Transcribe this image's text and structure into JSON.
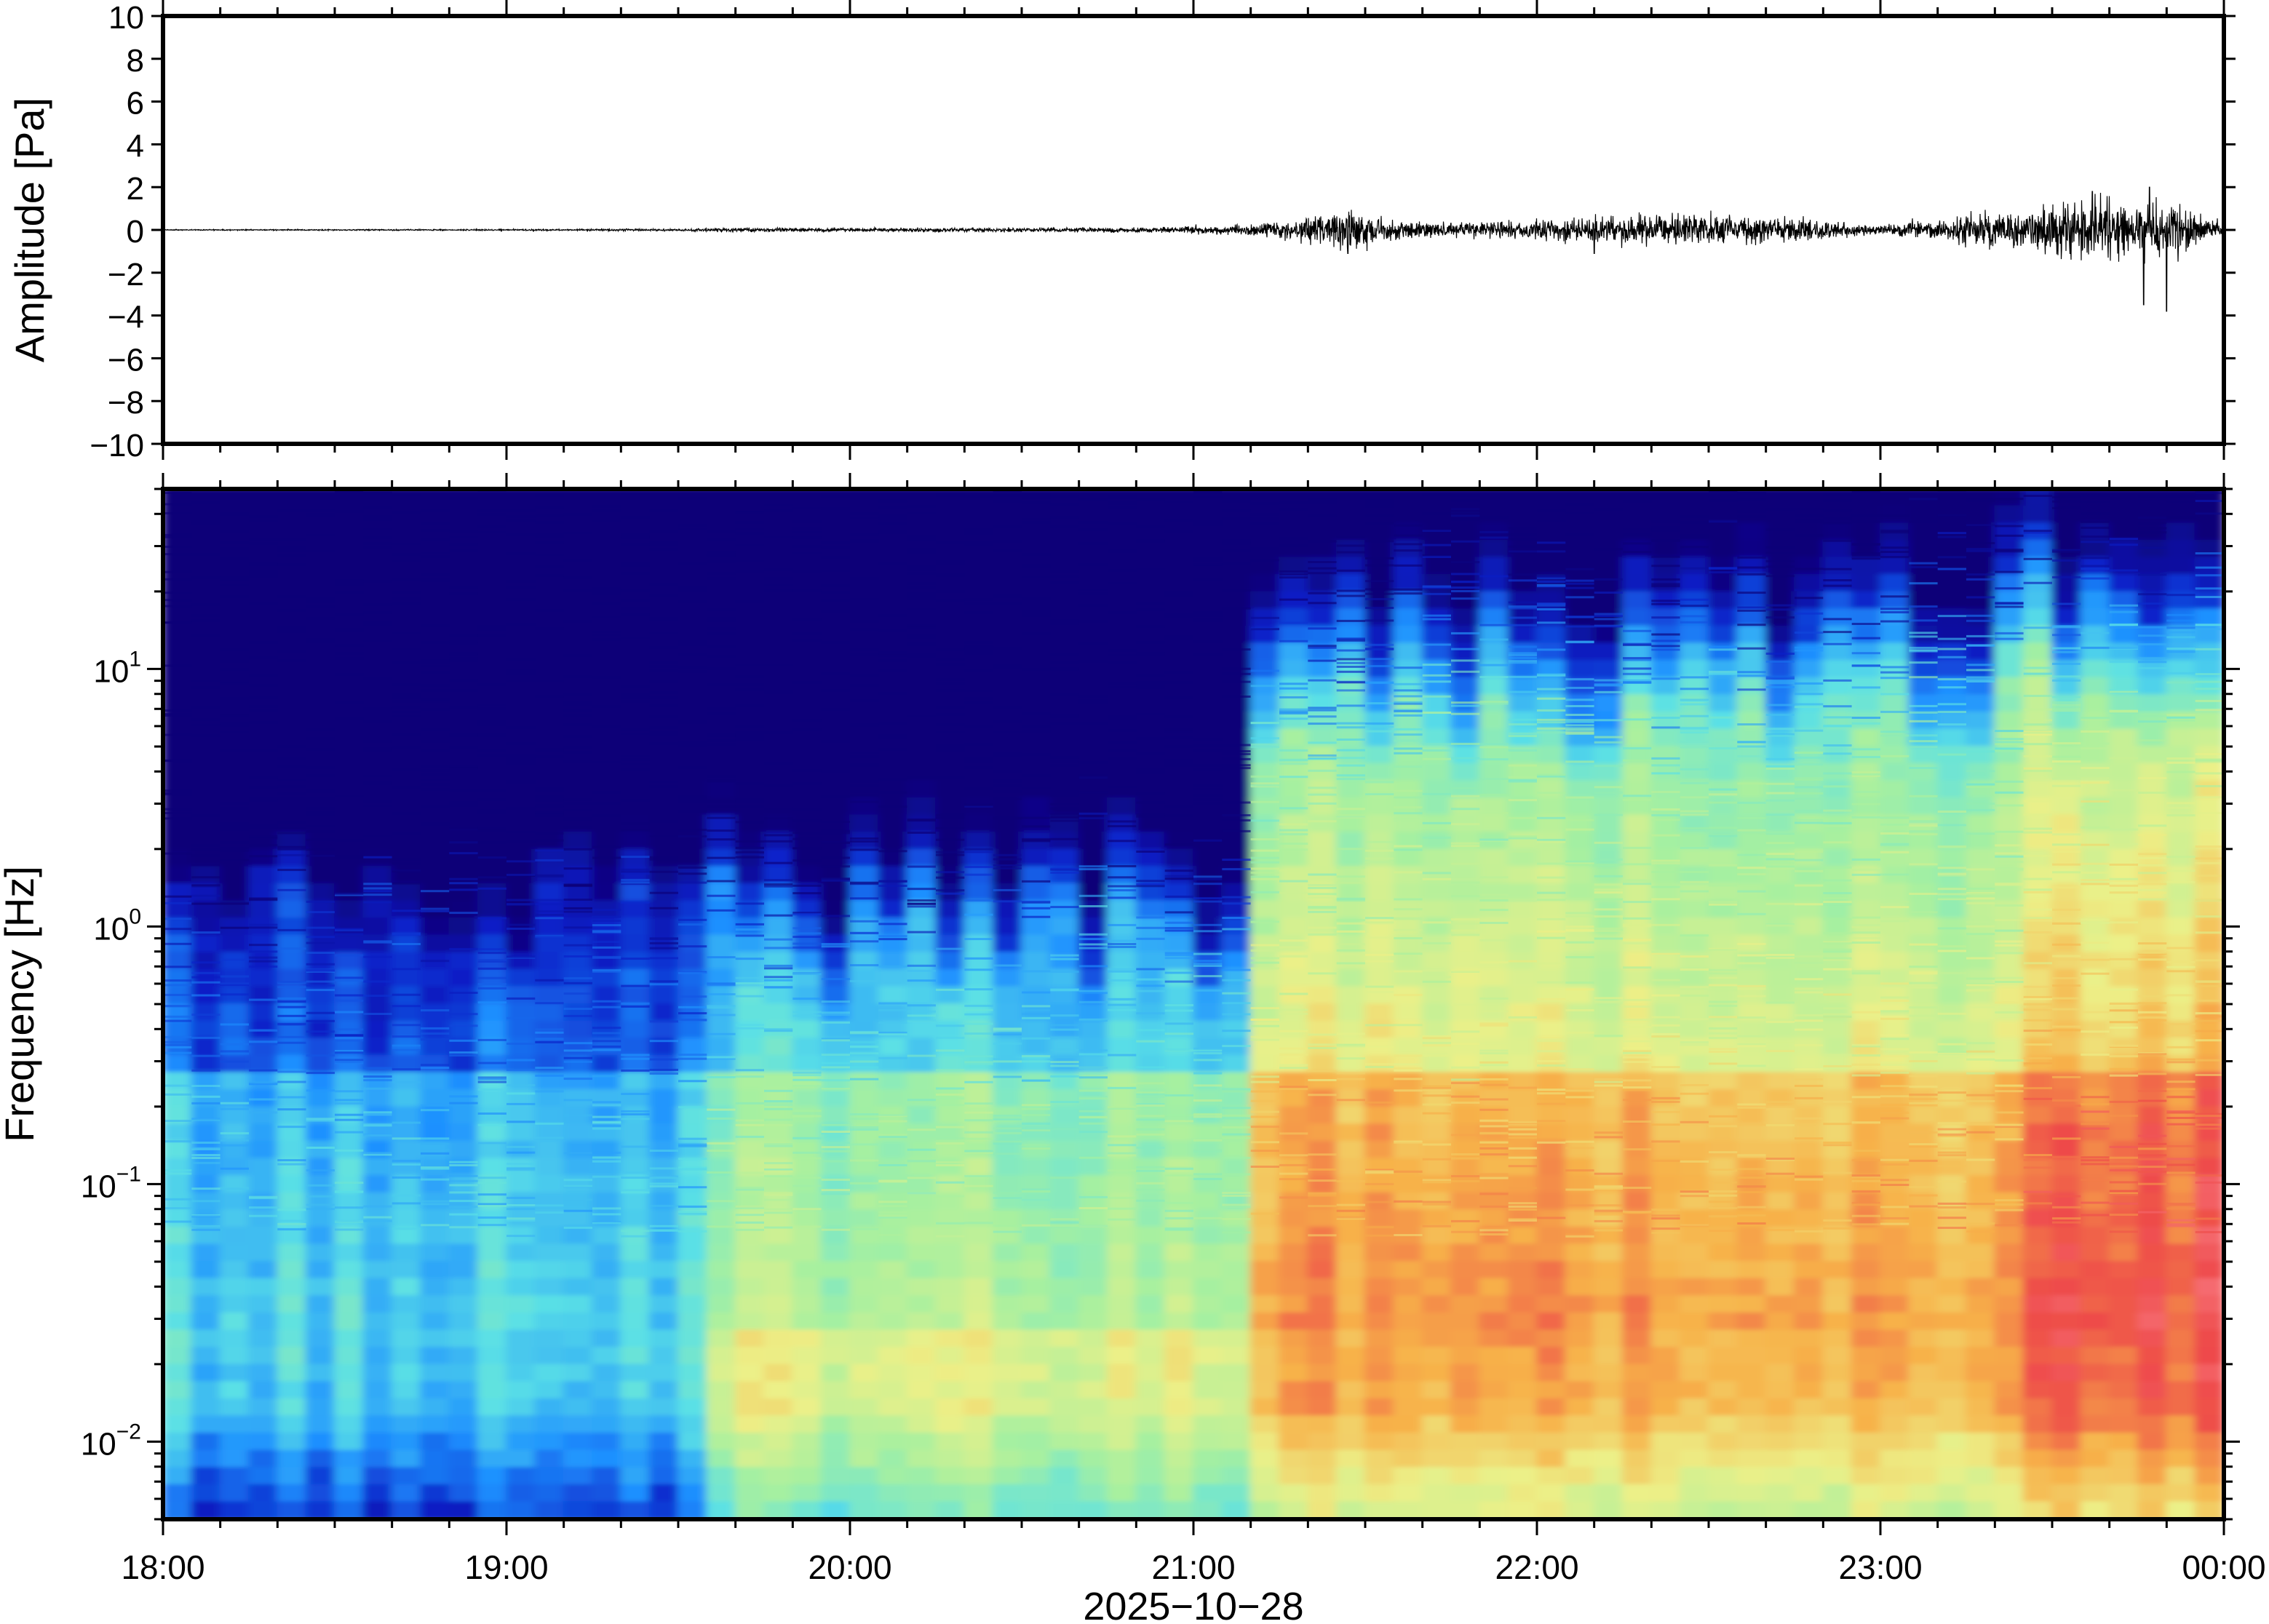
{
  "chart_data": [
    {
      "type": "line",
      "panel": "waveform",
      "ylabel": "Amplitude [Pa]",
      "xlabel": "",
      "xlim": [
        "18:00",
        "00:00"
      ],
      "ylim": [
        -10,
        10
      ],
      "y_ticks": [
        10,
        8,
        6,
        4,
        2,
        0,
        -2,
        -4,
        -6,
        -8,
        -10
      ],
      "y_tick_labels": [
        "10",
        "8",
        "6",
        "4",
        "2",
        "0",
        "−2",
        "−4",
        "−6",
        "−8",
        "−10"
      ],
      "grid": false,
      "series": [
        {
          "color": "#000000",
          "envelope": {
            "time_hours": [
              18.0,
              19.0,
              19.5,
              19.7,
              20.0,
              20.5,
              20.9,
              21.15,
              21.3,
              21.4,
              21.45,
              21.6,
              21.8,
              22.0,
              22.2,
              22.5,
              22.8,
              23.0,
              23.2,
              23.4,
              23.55,
              23.7,
              23.85,
              23.95,
              24.0
            ],
            "amplitude_pa": [
              0.03,
              0.04,
              0.06,
              0.12,
              0.1,
              0.12,
              0.15,
              0.3,
              0.6,
              1.0,
              1.2,
              0.5,
              0.5,
              0.6,
              0.8,
              0.9,
              0.6,
              0.3,
              0.7,
              1.2,
              1.6,
              1.8,
              1.5,
              0.8,
              0.4
            ]
          },
          "peaks": [
            {
              "time": "21:27",
              "value": -1.1
            },
            {
              "time": "22:10",
              "value": -1.1
            },
            {
              "time": "23:37",
              "value": 1.8
            },
            {
              "time": "23:47",
              "value": 2.0
            },
            {
              "time": "23:46",
              "value": -3.5
            },
            {
              "time": "23:50",
              "value": -3.8
            }
          ]
        }
      ]
    },
    {
      "type": "heatmap",
      "panel": "spectrogram",
      "ylabel": "Frequency [Hz]",
      "xlabel": "2025−10−28",
      "y_scale": "log",
      "ylim": [
        0.005,
        50
      ],
      "y_ticks": [
        0.01,
        0.1,
        1,
        10
      ],
      "y_tick_labels": [
        {
          "base": "10",
          "exp": "−2"
        },
        {
          "base": "10",
          "exp": "−1"
        },
        {
          "base": "10",
          "exp": "0"
        },
        {
          "base": "10",
          "exp": "1"
        }
      ],
      "x_ticks": [
        "18:00",
        "19:00",
        "20:00",
        "21:00",
        "22:00",
        "23:00",
        "00:00"
      ],
      "colormap": "jet",
      "colormap_stops": [
        "#0c0078",
        "#0a20c8",
        "#1e90ff",
        "#5ae0e6",
        "#a6f0a0",
        "#ecf088",
        "#f7b24a",
        "#ee4a4a",
        "#ff9aa6"
      ],
      "grid": false,
      "time_columns": 72,
      "regimes": [
        {
          "start": "18:00",
          "end": "19:35",
          "noise_cutoff_hz": 4.0,
          "lowfreq_level": "cyan",
          "band_0.1hz": "light-blue"
        },
        {
          "start": "19:35",
          "end": "21:12",
          "noise_cutoff_hz": 3.0,
          "lowfreq_level": "yellow-orange",
          "band_0.1hz": "cyan-yellow"
        },
        {
          "start": "21:12",
          "end": "23:25",
          "noise_cutoff_hz": 20.0,
          "lowfreq_level": "orange-red",
          "band_0.1hz": "orange"
        },
        {
          "start": "23:25",
          "end": "00:00",
          "noise_cutoff_hz": 25.0,
          "lowfreq_level": "red-pink",
          "band_0.1hz": "red"
        }
      ]
    }
  ]
}
